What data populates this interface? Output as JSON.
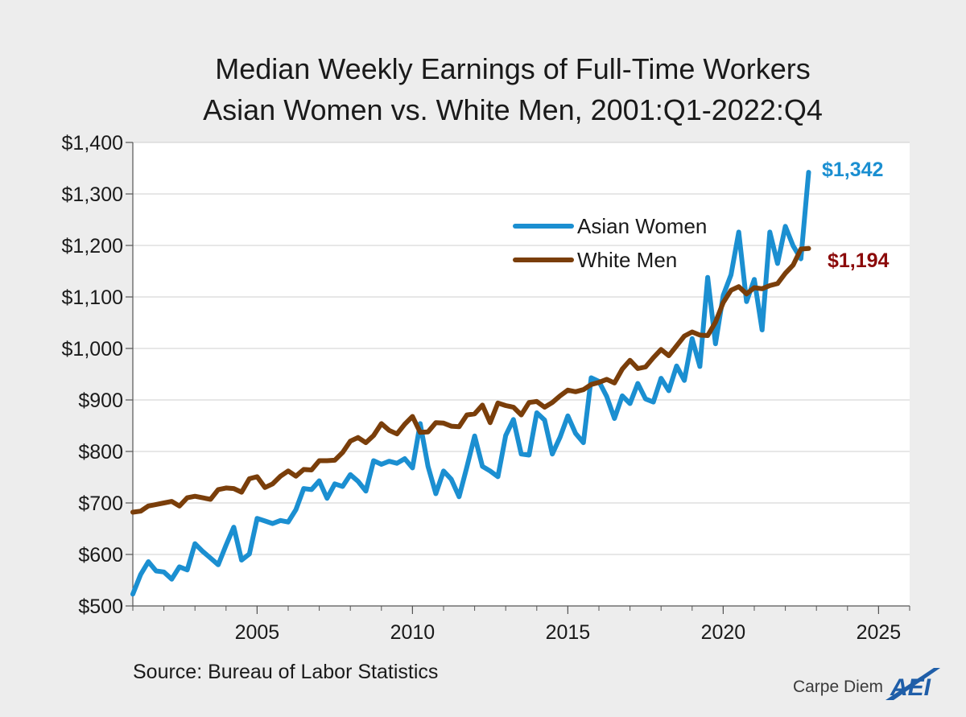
{
  "chart_data": {
    "type": "line",
    "title_lines": [
      "Median Weekly Earnings of Full-Time Workers",
      "Asian Women vs. White Men, 2001:Q1-2022:Q4"
    ],
    "xlabel": "",
    "ylabel": "",
    "xlim": [
      2001,
      2026
    ],
    "ylim": [
      500,
      1400
    ],
    "x_ticks": [
      2005,
      2010,
      2015,
      2020,
      2025
    ],
    "x_tick_labels": [
      "2005",
      "2010",
      "2015",
      "2020",
      "2025"
    ],
    "y_ticks": [
      500,
      600,
      700,
      800,
      900,
      1000,
      1100,
      1200,
      1300,
      1400
    ],
    "y_tick_labels": [
      "$500",
      "$600",
      "$700",
      "$800",
      "$900",
      "$1,000",
      "$1,100",
      "$1,200",
      "$1,300",
      "$1,400"
    ],
    "grid": "horizontal",
    "legend_placement": "upper-right inside plot",
    "x_start": 2001.0,
    "x_step": 0.25,
    "series": [
      {
        "name": "Asian Women",
        "color": "#1b8fd1",
        "end_label": "$1,342",
        "values": [
          523,
          561,
          586,
          568,
          566,
          552,
          576,
          570,
          621,
          606,
          593,
          580,
          618,
          653,
          589,
          601,
          670,
          665,
          660,
          666,
          663,
          687,
          728,
          726,
          743,
          709,
          737,
          732,
          755,
          742,
          723,
          782,
          775,
          781,
          777,
          786,
          768,
          854,
          771,
          718,
          762,
          746,
          712,
          770,
          830,
          771,
          762,
          751,
          831,
          862,
          795,
          793,
          875,
          861,
          795,
          828,
          869,
          835,
          817,
          943,
          936,
          907,
          864,
          908,
          893,
          932,
          902,
          896,
          942,
          918,
          966,
          938,
          1019,
          965,
          1138,
          1009,
          1103,
          1143,
          1226,
          1091,
          1134,
          1036,
          1226,
          1165,
          1237,
          1199,
          1174,
          1342
        ]
      },
      {
        "name": "White Men",
        "color": "#7a3e0a",
        "end_label": "$1,194",
        "values": [
          682,
          684,
          694,
          697,
          700,
          703,
          694,
          710,
          713,
          710,
          707,
          726,
          729,
          728,
          721,
          747,
          751,
          730,
          737,
          752,
          762,
          752,
          765,
          764,
          782,
          782,
          783,
          798,
          820,
          827,
          817,
          831,
          854,
          841,
          834,
          853,
          868,
          837,
          838,
          856,
          855,
          849,
          848,
          871,
          873,
          890,
          856,
          894,
          889,
          886,
          871,
          895,
          897,
          886,
          895,
          908,
          919,
          916,
          920,
          930,
          934,
          940,
          933,
          960,
          977,
          961,
          964,
          982,
          998,
          986,
          1005,
          1024,
          1032,
          1026,
          1025,
          1051,
          1089,
          1113,
          1120,
          1106,
          1118,
          1116,
          1122,
          1126,
          1146,
          1162,
          1193,
          1194
        ]
      }
    ],
    "source": "Source: Bureau of Labor Statistics"
  },
  "branding": {
    "text": "Carpe Diem",
    "logo_text": "AEI",
    "logo_color": "#1f5ea8"
  }
}
